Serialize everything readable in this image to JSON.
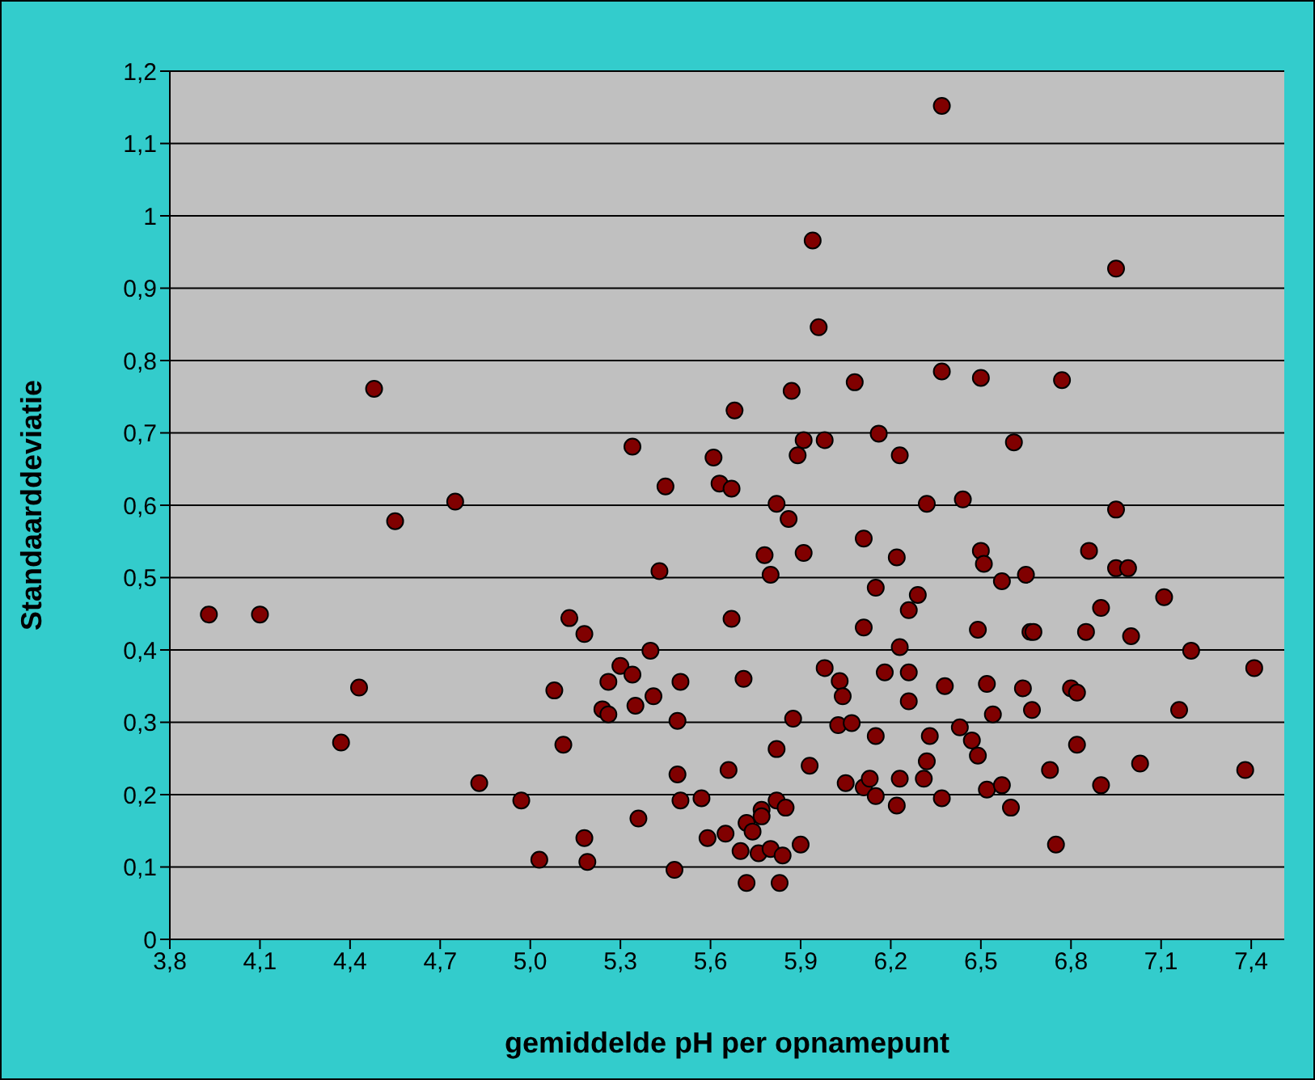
{
  "chart_data": {
    "type": "scatter",
    "xlabel": "gemiddelde pH per opnamepunt",
    "ylabel": "Standaarddeviatie",
    "x": [
      3.93,
      4.1,
      4.43,
      4.37,
      4.55,
      4.75,
      4.83,
      4.97,
      5.03,
      5.08,
      5.11,
      5.13,
      5.18,
      5.18,
      5.19,
      5.24,
      5.26,
      5.26,
      5.3,
      5.34,
      5.35,
      5.36,
      5.4,
      5.41,
      5.43,
      5.45,
      5.49,
      5.5,
      5.48,
      5.49,
      5.5,
      5.57,
      5.59,
      4.48,
      5.34,
      5.61,
      5.63,
      5.67,
      6.37,
      5.94,
      6.95,
      5.96,
      6.37,
      6.5,
      6.77,
      6.08,
      5.87,
      5.68,
      6.16,
      5.91,
      5.98,
      5.89,
      6.23,
      6.61,
      5.82,
      6.32,
      6.44,
      5.86,
      6.95,
      6.11,
      5.78,
      5.91,
      6.22,
      6.5,
      6.51,
      6.86,
      5.8,
      6.57,
      6.65,
      6.95,
      6.99,
      6.15,
      6.29,
      6.26,
      7.11,
      6.9,
      5.67,
      6.11,
      6.49,
      6.665,
      6.675,
      6.85,
      7.0,
      6.23,
      7.2,
      7.41,
      5.98,
      5.71,
      6.03,
      6.18,
      6.26,
      6.04,
      6.26,
      6.38,
      6.52,
      6.64,
      6.8,
      6.82,
      6.54,
      6.67,
      7.16,
      5.875,
      6.025,
      6.07,
      6.15,
      6.33,
      6.43,
      6.47,
      6.49,
      6.82,
      5.82,
      5.66,
      5.93,
      6.32,
      6.73,
      7.03,
      7.38,
      6.05,
      6.11,
      6.13,
      6.15,
      6.23,
      6.22,
      6.31,
      6.37,
      6.52,
      6.57,
      6.6,
      6.9,
      5.82,
      5.85,
      5.77,
      5.77,
      5.72,
      5.74,
      5.65,
      5.7,
      5.76,
      5.8,
      5.84,
      5.9,
      6.75,
      5.72,
      5.83
    ],
    "values": [
      0.449,
      0.449,
      0.348,
      0.272,
      0.578,
      0.605,
      0.216,
      0.192,
      0.11,
      0.344,
      0.269,
      0.444,
      0.422,
      0.14,
      0.107,
      0.318,
      0.311,
      0.356,
      0.378,
      0.366,
      0.323,
      0.167,
      0.399,
      0.336,
      0.509,
      0.626,
      0.302,
      0.356,
      0.096,
      0.228,
      0.192,
      0.195,
      0.14,
      0.761,
      0.681,
      0.666,
      0.63,
      0.623,
      1.152,
      0.966,
      0.927,
      0.846,
      0.785,
      0.776,
      0.773,
      0.77,
      0.758,
      0.731,
      0.699,
      0.69,
      0.69,
      0.669,
      0.669,
      0.687,
      0.602,
      0.602,
      0.608,
      0.581,
      0.594,
      0.554,
      0.531,
      0.534,
      0.528,
      0.537,
      0.519,
      0.537,
      0.504,
      0.495,
      0.504,
      0.513,
      0.513,
      0.486,
      0.476,
      0.455,
      0.473,
      0.458,
      0.443,
      0.431,
      0.428,
      0.425,
      0.425,
      0.425,
      0.419,
      0.404,
      0.399,
      0.375,
      0.375,
      0.36,
      0.357,
      0.369,
      0.369,
      0.336,
      0.329,
      0.35,
      0.353,
      0.347,
      0.347,
      0.341,
      0.311,
      0.317,
      0.317,
      0.305,
      0.296,
      0.299,
      0.281,
      0.281,
      0.293,
      0.275,
      0.254,
      0.269,
      0.263,
      0.234,
      0.24,
      0.246,
      0.234,
      0.243,
      0.234,
      0.216,
      0.21,
      0.222,
      0.198,
      0.222,
      0.185,
      0.222,
      0.195,
      0.207,
      0.213,
      0.182,
      0.213,
      0.192,
      0.182,
      0.179,
      0.17,
      0.161,
      0.149,
      0.146,
      0.122,
      0.119,
      0.125,
      0.116,
      0.131,
      0.131,
      0.078,
      0.078
    ],
    "color": "#800000",
    "marker": "circle",
    "grid": "y",
    "legend": false,
    "xlim": [
      3.8,
      7.51
    ],
    "xticks": [
      {
        "value": 3.8,
        "label": "3,8"
      },
      {
        "value": 4.1,
        "label": "4,1"
      },
      {
        "value": 4.4,
        "label": "4,4"
      },
      {
        "value": 4.7,
        "label": "4,7"
      },
      {
        "value": 5.0,
        "label": "5,0"
      },
      {
        "value": 5.3,
        "label": "5,3"
      },
      {
        "value": 5.6,
        "label": "5,6"
      },
      {
        "value": 5.9,
        "label": "5,9"
      },
      {
        "value": 6.2,
        "label": "6,2"
      },
      {
        "value": 6.5,
        "label": "6,5"
      },
      {
        "value": 6.8,
        "label": "6,8"
      },
      {
        "value": 7.1,
        "label": "7,1"
      },
      {
        "value": 7.4,
        "label": "7,4"
      }
    ],
    "ylim": [
      0,
      1.2
    ],
    "yticks": [
      0,
      {
        "value": 0.1,
        "label": "0,1"
      },
      {
        "value": 0.2,
        "label": "0,2"
      },
      {
        "value": 0.3,
        "label": "0,3"
      },
      {
        "value": 0.4,
        "label": "0,4"
      },
      {
        "value": 0.5,
        "label": "0,5"
      },
      {
        "value": 0.6,
        "label": "0,6"
      },
      {
        "value": 0.7,
        "label": "0,7"
      },
      {
        "value": 0.8,
        "label": "0,8"
      },
      {
        "value": 0.9,
        "label": "0,9"
      },
      1,
      {
        "value": 1.1,
        "label": "1,1"
      },
      {
        "value": 1.2,
        "label": "1,2"
      }
    ]
  }
}
